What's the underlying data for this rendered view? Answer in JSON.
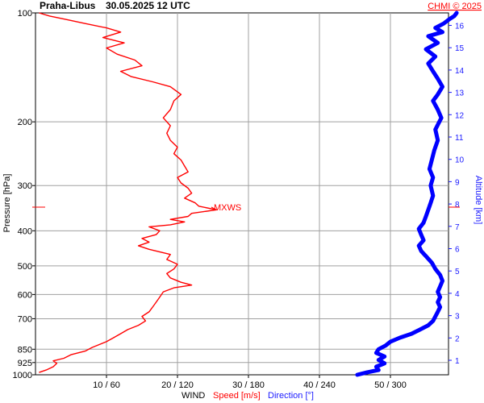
{
  "header": {
    "station": "Praha-Libus",
    "datetime": "30.05.2025 12 UTC",
    "credit": "CHMI © 2025"
  },
  "axes": {
    "left_label": "Pressure [hPa]",
    "right_label": "Altitude [km]",
    "bottom_prefix": "WIND",
    "bottom_speed": "Speed [m/s]",
    "bottom_direction": "Direction [°]"
  },
  "annotation": {
    "text": "MXWS"
  },
  "colors": {
    "speed": "#ff0000",
    "direction": "#0000ff",
    "grid": "#a0a0a0",
    "axis": "#000000"
  },
  "chart_data": {
    "type": "line",
    "title": "Praha-Libus 30.05.2025 12 UTC",
    "xlabel": "WIND Speed [m/s] Direction [°]",
    "ylabel": "Pressure [hPa]",
    "y2label": "Altitude [km]",
    "y_scale": "log-pressure",
    "ylim": [
      1000,
      100
    ],
    "xlim_speed": [
      0,
      50
    ],
    "xlim_direction": [
      0,
      360
    ],
    "grid": true,
    "pressure_ticks": [
      100,
      200,
      300,
      400,
      500,
      600,
      700,
      850,
      925,
      1000
    ],
    "altitude_ticks": [
      "1",
      "2",
      "3",
      "4",
      "5",
      "6",
      "7",
      "8",
      "9",
      "10",
      "11",
      "12",
      "13",
      "14",
      "15",
      "16"
    ],
    "x_ticks": [
      "10 / 60",
      "20 / 120",
      "30 / 180",
      "40 / 240",
      "50 / 300"
    ],
    "annotations": [
      {
        "text": "MXWS",
        "pressure": 350,
        "speed": 25.5
      }
    ],
    "series": [
      {
        "name": "Speed [m/s]",
        "unit": "m/s",
        "points": [
          [
            985,
            0.5
          ],
          [
            970,
            1.5
          ],
          [
            950,
            2.5
          ],
          [
            930,
            3
          ],
          [
            915,
            2.5
          ],
          [
            900,
            4
          ],
          [
            880,
            5
          ],
          [
            860,
            7
          ],
          [
            840,
            8
          ],
          [
            810,
            10
          ],
          [
            790,
            11
          ],
          [
            770,
            12
          ],
          [
            750,
            13
          ],
          [
            730,
            14.5
          ],
          [
            710,
            15.5
          ],
          [
            690,
            15
          ],
          [
            670,
            16
          ],
          [
            650,
            16.5
          ],
          [
            630,
            17
          ],
          [
            610,
            17.5
          ],
          [
            590,
            18
          ],
          [
            575,
            19.5
          ],
          [
            565,
            22
          ],
          [
            555,
            20.5
          ],
          [
            540,
            19
          ],
          [
            525,
            18.5
          ],
          [
            510,
            19.5
          ],
          [
            495,
            20
          ],
          [
            480,
            18.5
          ],
          [
            465,
            19
          ],
          [
            450,
            16
          ],
          [
            440,
            14.5
          ],
          [
            430,
            16
          ],
          [
            420,
            15
          ],
          [
            410,
            17
          ],
          [
            400,
            17.5
          ],
          [
            390,
            16
          ],
          [
            385,
            19
          ],
          [
            378,
            21
          ],
          [
            372,
            19
          ],
          [
            365,
            21.5
          ],
          [
            358,
            22
          ],
          [
            350,
            25.5
          ],
          [
            342,
            23
          ],
          [
            335,
            22.5
          ],
          [
            325,
            21
          ],
          [
            315,
            22
          ],
          [
            305,
            21.5
          ],
          [
            295,
            20.5
          ],
          [
            285,
            20
          ],
          [
            275,
            21.5
          ],
          [
            265,
            21
          ],
          [
            255,
            20.5
          ],
          [
            245,
            19.5
          ],
          [
            235,
            20
          ],
          [
            225,
            19
          ],
          [
            215,
            18.5
          ],
          [
            205,
            19
          ],
          [
            195,
            18
          ],
          [
            185,
            19
          ],
          [
            175,
            19.5
          ],
          [
            168,
            20.5
          ],
          [
            160,
            19
          ],
          [
            155,
            16.5
          ],
          [
            150,
            13.5
          ],
          [
            145,
            12
          ],
          [
            140,
            15
          ],
          [
            135,
            14
          ],
          [
            130,
            11.5
          ],
          [
            125,
            10
          ],
          [
            121,
            12.5
          ],
          [
            117,
            9.5
          ],
          [
            113,
            12
          ],
          [
            110,
            10
          ],
          [
            107,
            7
          ],
          [
            104,
            4
          ],
          [
            102,
            2
          ],
          [
            100,
            0.5
          ]
        ]
      },
      {
        "name": "Direction [°]",
        "unit": "deg",
        "points": [
          [
            1000,
            272
          ],
          [
            985,
            280
          ],
          [
            970,
            290
          ],
          [
            950,
            288
          ],
          [
            930,
            295
          ],
          [
            910,
            290
          ],
          [
            890,
            295
          ],
          [
            870,
            288
          ],
          [
            850,
            290
          ],
          [
            830,
            296
          ],
          [
            810,
            300
          ],
          [
            790,
            308
          ],
          [
            770,
            318
          ],
          [
            750,
            325
          ],
          [
            730,
            332
          ],
          [
            710,
            336
          ],
          [
            690,
            338
          ],
          [
            670,
            340
          ],
          [
            650,
            342
          ],
          [
            630,
            340
          ],
          [
            610,
            342
          ],
          [
            590,
            340
          ],
          [
            570,
            342
          ],
          [
            550,
            344
          ],
          [
            530,
            342
          ],
          [
            510,
            338
          ],
          [
            490,
            335
          ],
          [
            470,
            330
          ],
          [
            455,
            326
          ],
          [
            440,
            324
          ],
          [
            425,
            328
          ],
          [
            410,
            326
          ],
          [
            395,
            324
          ],
          [
            380,
            328
          ],
          [
            365,
            330
          ],
          [
            350,
            332
          ],
          [
            335,
            334
          ],
          [
            320,
            336
          ],
          [
            300,
            334
          ],
          [
            285,
            336
          ],
          [
            270,
            333
          ],
          [
            255,
            335
          ],
          [
            240,
            337
          ],
          [
            225,
            340
          ],
          [
            210,
            338
          ],
          [
            195,
            343
          ],
          [
            185,
            340
          ],
          [
            175,
            336
          ],
          [
            168,
            340
          ],
          [
            160,
            344
          ],
          [
            152,
            340
          ],
          [
            145,
            336
          ],
          [
            138,
            332
          ],
          [
            132,
            338
          ],
          [
            126,
            330
          ],
          [
            121,
            340
          ],
          [
            116,
            332
          ],
          [
            113,
            344
          ],
          [
            110,
            338
          ],
          [
            107,
            345
          ],
          [
            104,
            350
          ],
          [
            102,
            354
          ],
          [
            100,
            356
          ]
        ]
      }
    ]
  }
}
